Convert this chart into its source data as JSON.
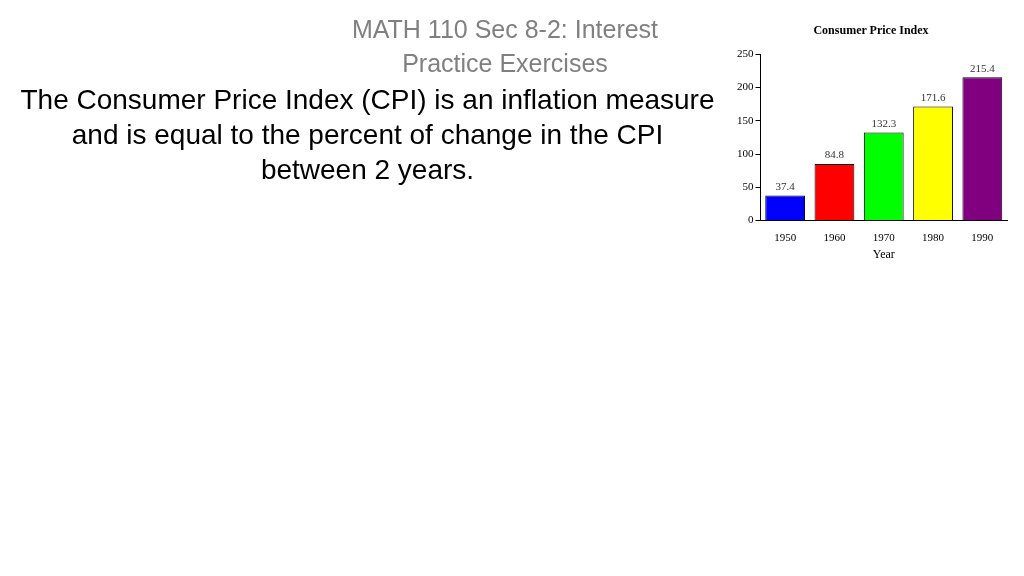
{
  "chart_data": {
    "type": "bar",
    "title": "Consumer Price Index",
    "xlabel": "Year",
    "categories": [
      "1950",
      "1960",
      "1970",
      "1980",
      "1990"
    ],
    "values": [
      37.4,
      84.8,
      132.3,
      171.6,
      215.4
    ],
    "colors": [
      "#0000ff",
      "#ff0000",
      "#00ff00",
      "#ffff00",
      "#800080"
    ],
    "ylim": [
      0,
      250
    ],
    "yticks": [
      0,
      50,
      100,
      150,
      200,
      250
    ],
    "grid": false,
    "data_labels": true,
    "annotations": [
      "MATH 110 Sec 8-2: Interest Practice Exercises",
      "The Consumer Price Index (CPI) is an inflation measure and is equal to the percent of change in the CPI between 2 years."
    ]
  }
}
